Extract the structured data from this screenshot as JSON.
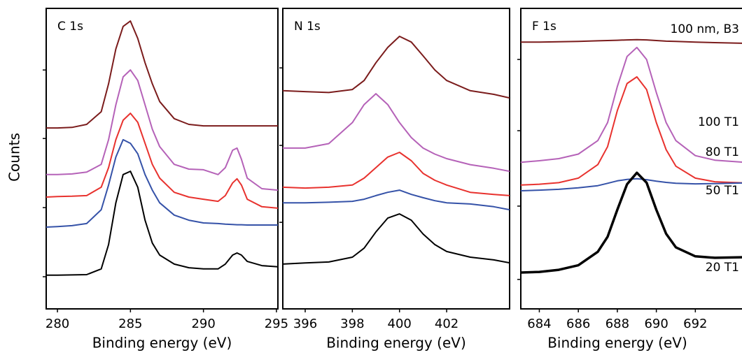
{
  "chart_data": [
    {
      "type": "line",
      "title": "C 1s",
      "xlabel": "Binding energy (eV)",
      "ylabel": "Counts",
      "x": [
        279.23,
        280,
        281,
        282,
        283,
        283.5,
        284,
        284.5,
        285,
        285.5,
        286,
        286.5,
        287,
        288,
        289,
        290,
        291,
        291.5,
        292,
        292.3,
        292.6,
        293,
        294,
        295.1
      ],
      "xlim": [
        279.23,
        295.1
      ],
      "xticks": [
        280,
        285,
        290,
        295
      ],
      "ylim": [
        0,
        100
      ],
      "yticks": [
        10.7,
        33.7,
        56.7,
        79.5
      ],
      "series": [
        {
          "color": "#7b1c1c",
          "linewidth": 2,
          "values": [
            60.2,
            60.2,
            60.4,
            61.4,
            65.6,
            74.9,
            86.5,
            94,
            95.8,
            90,
            81.9,
            74.9,
            69,
            63.3,
            61.4,
            60.9,
            60.9,
            60.9,
            60.9,
            60.9,
            60.9,
            60.9,
            60.9,
            60.9
          ]
        },
        {
          "color": "#b562b8",
          "linewidth": 2,
          "values": [
            44.7,
            44.7,
            44.9,
            45.5,
            48.1,
            56.3,
            67.9,
            77.2,
            79.5,
            76,
            67.9,
            59.8,
            54,
            48.1,
            46.5,
            46.3,
            44.7,
            47,
            52.8,
            53.5,
            49.8,
            43.5,
            40,
            39.5
          ]
        },
        {
          "color": "#e8322e",
          "linewidth": 2,
          "values": [
            37.2,
            37.4,
            37.5,
            37.7,
            40.5,
            47,
            56.3,
            62.8,
            65.1,
            62.1,
            55.1,
            48.1,
            43.5,
            38.8,
            37.2,
            36.5,
            35.8,
            37.7,
            41.9,
            43.3,
            41.2,
            36.5,
            34,
            33.5
          ]
        },
        {
          "color": "#3552a8",
          "linewidth": 2,
          "values": [
            27.2,
            27.4,
            27.7,
            28.4,
            33,
            41.2,
            50.5,
            56.3,
            55.1,
            51.6,
            44.7,
            39.5,
            35.3,
            31.2,
            29.5,
            28.6,
            28.4,
            28.2,
            28.1,
            28,
            28,
            27.9,
            27.9,
            27.9
          ]
        },
        {
          "color": "#000000",
          "linewidth": 2,
          "values": [
            11.2,
            11.2,
            11.3,
            11.4,
            13.3,
            21.4,
            35.3,
            44.7,
            45.8,
            40.5,
            29.5,
            21.9,
            17.9,
            14.9,
            13.7,
            13.3,
            13.3,
            14.9,
            17.9,
            18.6,
            17.9,
            15.8,
            14.4,
            14
          ]
        }
      ]
    },
    {
      "type": "line",
      "title": "N 1s",
      "xlabel": "Binding energy (eV)",
      "x": [
        395.05,
        396,
        397,
        398,
        398.5,
        399,
        399.5,
        400,
        400.5,
        401,
        401.5,
        402,
        403,
        404,
        404.67
      ],
      "xlim": [
        395.05,
        404.67
      ],
      "xticks": [
        396,
        398,
        400,
        402
      ],
      "ylim": [
        0,
        100
      ],
      "yticks": [
        28.8,
        54.4,
        80.2
      ],
      "series": [
        {
          "color": "#7b1c1c",
          "linewidth": 2,
          "values": [
            72.6,
            72.3,
            72,
            73,
            76,
            81.9,
            87,
            90.7,
            88.8,
            84.2,
            79.5,
            76,
            72.6,
            71.4,
            70.2
          ]
        },
        {
          "color": "#b562b8",
          "linewidth": 2,
          "values": [
            53.5,
            53.5,
            55,
            62,
            68,
            71.6,
            68,
            62,
            57,
            53.5,
            51.5,
            50,
            48,
            46.8,
            45.8
          ]
        },
        {
          "color": "#e8322e",
          "linewidth": 2,
          "values": [
            40.5,
            40.2,
            40.5,
            41.2,
            43.5,
            47,
            50.5,
            52.1,
            49.3,
            45.1,
            42.8,
            41.2,
            38.8,
            38.1,
            37.7
          ]
        },
        {
          "color": "#3552a8",
          "linewidth": 2,
          "values": [
            35.3,
            35.3,
            35.5,
            35.8,
            36.5,
            37.7,
            38.8,
            39.5,
            38.1,
            37,
            36,
            35.3,
            34.9,
            34,
            33
          ]
        },
        {
          "color": "#000000",
          "linewidth": 2,
          "values": [
            14.9,
            15.3,
            15.6,
            17.2,
            20.2,
            25.6,
            30.2,
            31.6,
            29.5,
            24.9,
            21.4,
            19.1,
            17.2,
            16.3,
            15.3
          ]
        }
      ]
    },
    {
      "type": "line",
      "title": "F 1s",
      "xlabel": "Binding energy (eV)",
      "x": [
        683.05,
        684,
        685,
        686,
        687,
        687.5,
        688,
        688.5,
        689,
        689.5,
        690,
        690.5,
        691,
        692,
        693,
        694.5
      ],
      "xlim": [
        683.05,
        694.5
      ],
      "xticks": [
        684,
        686,
        688,
        690,
        692
      ],
      "ylim": [
        0,
        100
      ],
      "yticks": [
        9.8,
        34.2,
        59.3,
        83
      ],
      "series": [
        {
          "name": "100 nm, B3",
          "color": "#7b1c1c",
          "linewidth": 2,
          "values": [
            88.8,
            88.8,
            88.9,
            89,
            89.2,
            89.3,
            89.4,
            89.5,
            89.6,
            89.5,
            89.3,
            89.1,
            89,
            88.8,
            88.6,
            88.4
          ]
        },
        {
          "name": "100 T1",
          "color": "#b562b8",
          "linewidth": 2,
          "values": [
            48.8,
            49.3,
            50,
            51.5,
            56,
            62,
            74,
            84,
            87,
            83,
            72,
            62,
            56,
            51,
            49.5,
            48.8
          ]
        },
        {
          "name": "80 T1",
          "color": "#e8322e",
          "linewidth": 2,
          "values": [
            41.2,
            41.5,
            42,
            43.5,
            48,
            54,
            66,
            75,
            77.2,
            73,
            62,
            53,
            47.5,
            43.5,
            42.3,
            41.9
          ]
        },
        {
          "name": "50 T1",
          "color": "#3552a8",
          "linewidth": 2,
          "values": [
            39.3,
            39.5,
            39.8,
            40.3,
            41,
            41.8,
            42.6,
            43.1,
            43.3,
            43,
            42.5,
            42.1,
            41.8,
            41.6,
            41.7,
            41.9
          ]
        },
        {
          "name": "20 T1",
          "color": "#000000",
          "linewidth": 3.5,
          "values": [
            12.1,
            12.3,
            13,
            14.5,
            19,
            24,
            33,
            41.5,
            45.3,
            42,
            33,
            25,
            20.5,
            17.5,
            17,
            17.2
          ]
        }
      ]
    }
  ]
}
